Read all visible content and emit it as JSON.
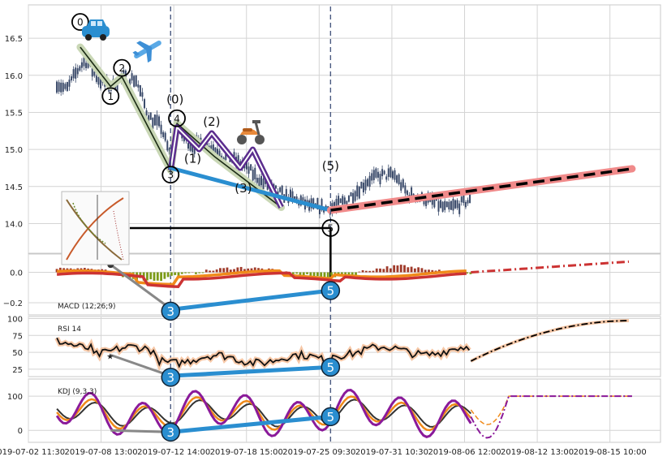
{
  "chart_data": [
    {
      "type": "candlestick",
      "panel": "price",
      "ylim": [
        13.6,
        16.95
      ],
      "yticks": [
        14.0,
        14.5,
        15.0,
        15.5,
        16.0,
        16.5
      ],
      "ytick_labels": [
        "14.0",
        "14.5",
        "15.0",
        "15.5",
        "16.0",
        "16.5"
      ],
      "xlim": [
        0,
        100
      ],
      "xticks": [
        0,
        11.5,
        23,
        34.5,
        46,
        57.5,
        69,
        80.5,
        92
      ],
      "xtick_labels": [
        "2019-07-02 11:30",
        "2019-07-08 13:00",
        "2019-07-12 14:00",
        "2019-07-18 15:00",
        "2019-07-25 09:30",
        "2019-07-31 10:30",
        "2019-08-06 12:00",
        "2019-08-12 13:00",
        "2019-08-15 10:00"
      ],
      "wave_path": [
        [
          8.2,
          16.38
        ],
        [
          13,
          15.85
        ],
        [
          14.8,
          15.98
        ],
        [
          22.5,
          14.72
        ],
        [
          23.5,
          15.35
        ],
        [
          29.5,
          14.9
        ],
        [
          40,
          14.22
        ]
      ],
      "wave_path_2": [
        [
          22.5,
          14.72
        ],
        [
          23.5,
          15.3
        ],
        [
          27,
          15.0
        ],
        [
          29,
          15.22
        ],
        [
          33.5,
          14.75
        ],
        [
          35.5,
          15.0
        ],
        [
          40,
          14.22
        ]
      ],
      "impulse_line": [
        [
          22.5,
          14.75
        ],
        [
          47.8,
          14.18
        ]
      ],
      "forecast_line": [
        [
          47.8,
          14.18
        ],
        [
          95.5,
          14.74
        ]
      ],
      "markers": [
        {
          "x": 8.2,
          "y": 16.72,
          "label": "0"
        },
        {
          "x": 13.0,
          "y": 15.72,
          "label": "1"
        },
        {
          "x": 14.8,
          "y": 16.1,
          "label": "2"
        },
        {
          "x": 22.5,
          "y": 14.66,
          "label": "3"
        },
        {
          "x": 23.5,
          "y": 15.42,
          "label": "4"
        },
        {
          "x": 47.8,
          "y": 13.94,
          "label": "5"
        }
      ],
      "wave_labels": [
        {
          "x": 23.2,
          "y": 15.62,
          "text": "(0)"
        },
        {
          "x": 26.0,
          "y": 14.82,
          "text": "(1)"
        },
        {
          "x": 29.0,
          "y": 15.32,
          "text": "(2)"
        },
        {
          "x": 34.0,
          "y": 14.42,
          "text": "(3)"
        },
        {
          "x": 47.8,
          "y": 14.72,
          "text": "(5)"
        }
      ],
      "connector_y": 13.94,
      "candles": []
    },
    {
      "type": "line",
      "panel": "macd",
      "label": "MACD (12;26;9)",
      "ylim": [
        -0.28,
        0.12
      ],
      "yticks": [
        0.0,
        -0.2
      ],
      "ytick_labels": [
        "0.0",
        "−0.2"
      ],
      "badges": [
        {
          "x": 22.5,
          "y": -0.255,
          "label": "3"
        },
        {
          "x": 47.8,
          "y": -0.12,
          "label": "5"
        }
      ]
    },
    {
      "type": "line",
      "panel": "rsi",
      "label": "RSI 14",
      "ylim": [
        14,
        103
      ],
      "yticks": [
        100,
        75,
        50,
        25
      ],
      "ytick_labels": [
        "100",
        "75",
        "50",
        "25"
      ],
      "badges": [
        {
          "x": 22.5,
          "y": 13,
          "label": "3"
        },
        {
          "x": 47.8,
          "y": 28,
          "label": "5"
        }
      ]
    },
    {
      "type": "line",
      "panel": "kdj",
      "label": "KDJ (9,3,3)",
      "ylim": [
        -35,
        150
      ],
      "yticks": [
        100,
        0
      ],
      "ytick_labels": [
        "100",
        "0"
      ],
      "badges": [
        {
          "x": 22.5,
          "y": -5,
          "label": "3"
        },
        {
          "x": 47.8,
          "y": 40,
          "label": "5"
        }
      ]
    }
  ],
  "colors": {
    "grid": "#d4d4d4",
    "candle": "#3a4a6a",
    "wave_glow": "#c9d7b5",
    "wave_purple": "#5b2d8e",
    "impulse_blue": "#2a8ed0",
    "forecast_red": "#f08a8a",
    "macd_hist_pos": "#a03a2a",
    "macd_hist_neg": "#7b9a18",
    "macd_fast": "#f08a1a",
    "macd_slow": "#cc3333",
    "rsi_line": "#111111",
    "rsi_glow": "#f6c7a6",
    "kdj_k": "#f08a1a",
    "kdj_d": "#333333",
    "kdj_j": "#8a1a9a",
    "dash_vertical": "#4a5a80"
  },
  "icons": [
    "car-emoji-icon",
    "airplane-emoji-icon",
    "scooter-emoji-icon"
  ]
}
